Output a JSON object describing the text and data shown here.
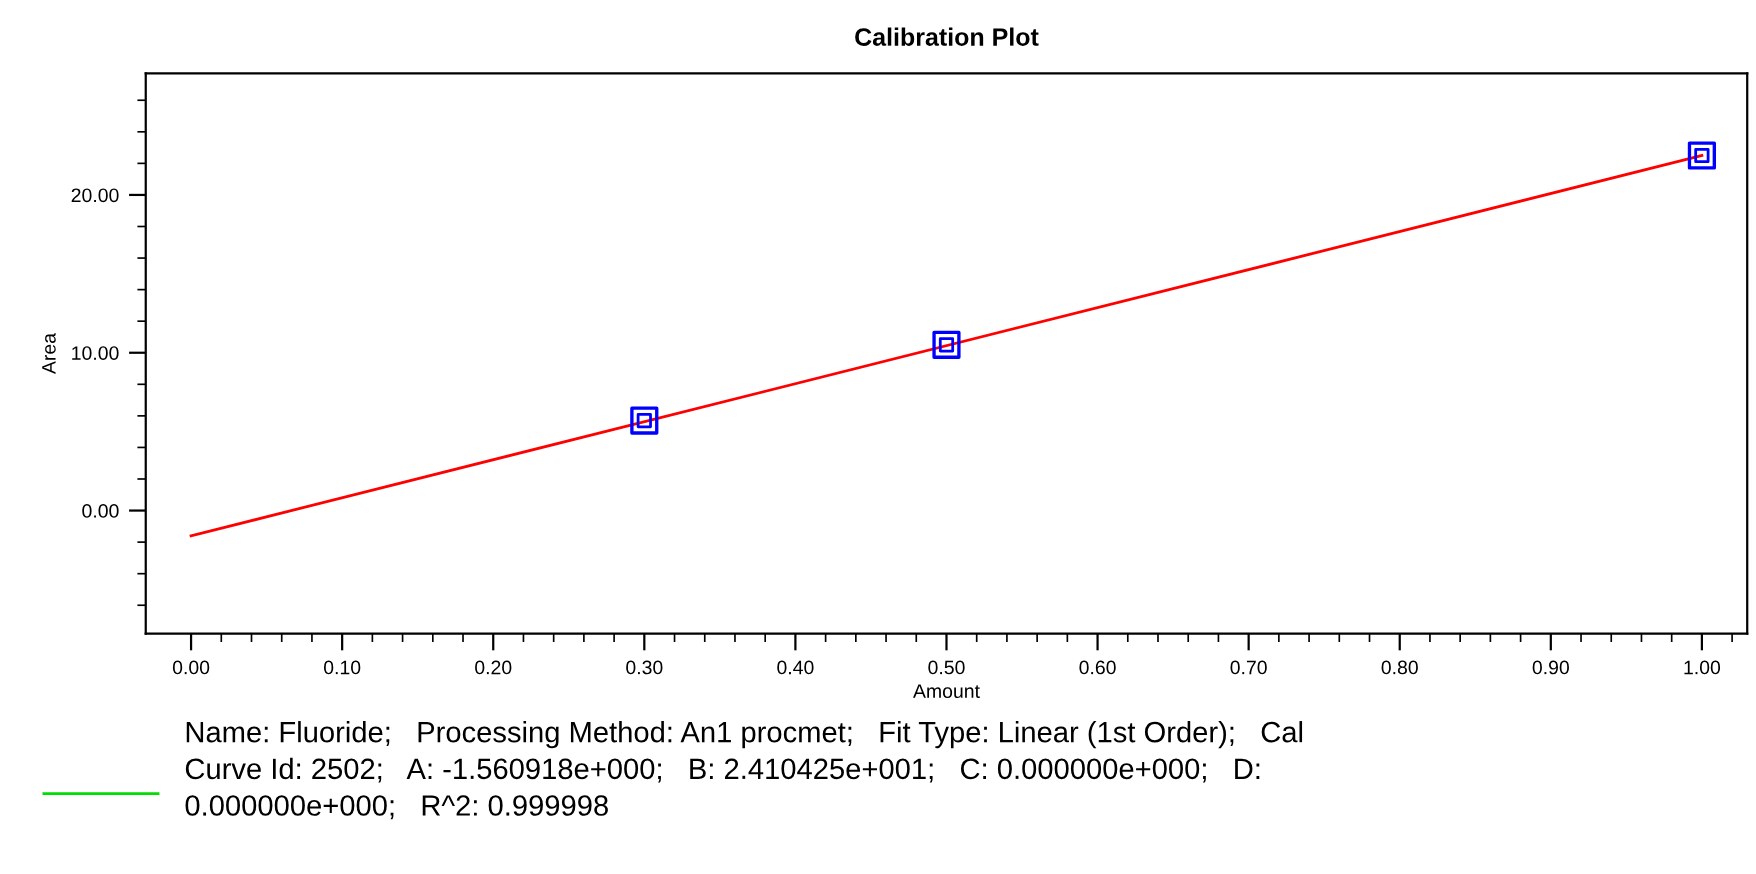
{
  "chart_data": {
    "type": "scatter",
    "title": "Calibration Plot",
    "xlabel": "Amount",
    "ylabel": "Area",
    "xlim": [
      -0.03,
      1.03
    ],
    "ylim": [
      -7.8,
      27.7
    ],
    "xticks": [
      {
        "value": 0,
        "label": "0.00"
      },
      {
        "value": 0.02,
        "label": null
      },
      {
        "value": 0.04,
        "label": null
      },
      {
        "value": 0.06,
        "label": null
      },
      {
        "value": 0.08,
        "label": null
      },
      {
        "value": 0.1,
        "label": "0.10"
      },
      {
        "value": 0.12,
        "label": null
      },
      {
        "value": 0.14,
        "label": null
      },
      {
        "value": 0.16,
        "label": null
      },
      {
        "value": 0.18,
        "label": null
      },
      {
        "value": 0.2,
        "label": "0.20"
      },
      {
        "value": 0.22,
        "label": null
      },
      {
        "value": 0.24,
        "label": null
      },
      {
        "value": 0.26,
        "label": null
      },
      {
        "value": 0.28,
        "label": null
      },
      {
        "value": 0.3,
        "label": "0.30"
      },
      {
        "value": 0.32,
        "label": null
      },
      {
        "value": 0.34,
        "label": null
      },
      {
        "value": 0.36,
        "label": null
      },
      {
        "value": 0.38,
        "label": null
      },
      {
        "value": 0.4,
        "label": "0.40"
      },
      {
        "value": 0.42,
        "label": null
      },
      {
        "value": 0.44,
        "label": null
      },
      {
        "value": 0.46,
        "label": null
      },
      {
        "value": 0.48,
        "label": null
      },
      {
        "value": 0.5,
        "label": "0.50"
      },
      {
        "value": 0.52,
        "label": null
      },
      {
        "value": 0.54,
        "label": null
      },
      {
        "value": 0.56,
        "label": null
      },
      {
        "value": 0.58,
        "label": null
      },
      {
        "value": 0.6,
        "label": "0.60"
      },
      {
        "value": 0.62,
        "label": null
      },
      {
        "value": 0.64,
        "label": null
      },
      {
        "value": 0.66,
        "label": null
      },
      {
        "value": 0.68,
        "label": null
      },
      {
        "value": 0.7,
        "label": "0.70"
      },
      {
        "value": 0.72,
        "label": null
      },
      {
        "value": 0.74,
        "label": null
      },
      {
        "value": 0.76,
        "label": null
      },
      {
        "value": 0.78,
        "label": null
      },
      {
        "value": 0.8,
        "label": "0.80"
      },
      {
        "value": 0.82,
        "label": null
      },
      {
        "value": 0.84,
        "label": null
      },
      {
        "value": 0.86,
        "label": null
      },
      {
        "value": 0.88,
        "label": null
      },
      {
        "value": 0.9,
        "label": "0.90"
      },
      {
        "value": 0.92,
        "label": null
      },
      {
        "value": 0.94,
        "label": null
      },
      {
        "value": 0.96,
        "label": null
      },
      {
        "value": 0.98,
        "label": null
      },
      {
        "value": 1.0,
        "label": "1.00"
      },
      {
        "value": 1.02,
        "label": null
      }
    ],
    "yticks": [
      {
        "value": -6,
        "label": null
      },
      {
        "value": -4,
        "label": null
      },
      {
        "value": -2,
        "label": null
      },
      {
        "value": 0,
        "label": "0.00"
      },
      {
        "value": 2,
        "label": null
      },
      {
        "value": 4,
        "label": null
      },
      {
        "value": 6,
        "label": null
      },
      {
        "value": 8,
        "label": null
      },
      {
        "value": 10,
        "label": "10.00"
      },
      {
        "value": 12,
        "label": null
      },
      {
        "value": 14,
        "label": null
      },
      {
        "value": 16,
        "label": null
      },
      {
        "value": 18,
        "label": null
      },
      {
        "value": 20,
        "label": "20.00"
      },
      {
        "value": 22,
        "label": null
      },
      {
        "value": 24,
        "label": null
      },
      {
        "value": 26,
        "label": null
      }
    ],
    "grid": false,
    "series": [
      {
        "color": "#0000ff",
        "marker": "square",
        "x": [
          0.3,
          0.5,
          1.0
        ],
        "values": [
          5.7,
          10.5,
          22.5
        ]
      },
      {
        "type": "line",
        "color": "#ff0000",
        "line_style": "solid",
        "x": [
          0,
          1
        ],
        "values": [
          -1.6,
          22.5
        ]
      }
    ],
    "annotations": [
      "Name: Fluoride;   Processing Method: An1 procmet;   Fit Type: Linear (1st Order);   Cal\nCurve Id: 2502;   A: -1.560918e+000;   B: 2.410425e+001;   C: 0.000000e+000;   D:\n0.000000e+000;   R^2: 0.999998"
    ]
  }
}
